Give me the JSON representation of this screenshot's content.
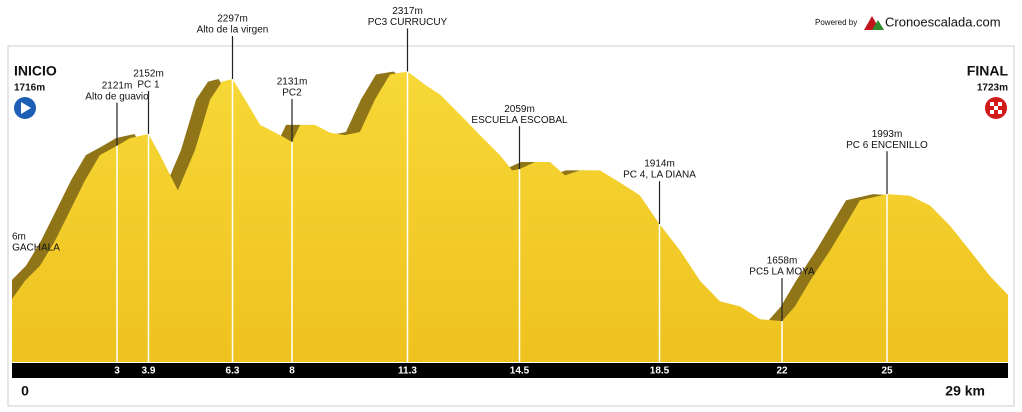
{
  "chart_data": {
    "type": "elevation-profile",
    "brand": {
      "prefix": "Powered by",
      "name": "Cronoescalada.com"
    },
    "start": {
      "label": "INICIO",
      "elevation_label": "1716m"
    },
    "finish": {
      "label": "FINAL",
      "elevation_label": "1723m"
    },
    "distance_label": "29 km",
    "xlim": [
      0,
      28.5
    ],
    "ylim": [
      1550,
      2400
    ],
    "xticks": [
      0
    ],
    "fill_color": "#f2cd2c",
    "shade_color": "#8f7518",
    "x": [
      0,
      0.37,
      0.8,
      1.23,
      1.66,
      2.09,
      2.51,
      3,
      3.37,
      3.9,
      4.23,
      4.74,
      5.23,
      5.66,
      6.0,
      6.3,
      6.66,
      7.09,
      7.66,
      8,
      8.23,
      8.66,
      9.09,
      9.51,
      9.94,
      10.37,
      10.8,
      11.3,
      11.8,
      12.23,
      12.8,
      13.37,
      13.94,
      14.29,
      14.5,
      14.94,
      15.37,
      15.8,
      16.23,
      16.8,
      17.37,
      17.94,
      18.5,
      19.09,
      19.66,
      20.23,
      20.8,
      21.37,
      22,
      22.37,
      22.8,
      23.37,
      23.8,
      24.23,
      25,
      25.66,
      26.23,
      26.8,
      27.37,
      27.94,
      28.5
    ],
    "values": [
      1716,
      1764,
      1804,
      1870,
      1950,
      2030,
      2096,
      2121,
      2141,
      2152,
      2096,
      2003,
      2110,
      2243,
      2290,
      2297,
      2243,
      2176,
      2149,
      2131,
      2176,
      2176,
      2155,
      2149,
      2157,
      2243,
      2309,
      2317,
      2282,
      2256,
      2203,
      2149,
      2096,
      2056,
      2059,
      2078,
      2078,
      2043,
      2056,
      2056,
      2024,
      1990,
      1914,
      1844,
      1764,
      1710,
      1697,
      1663,
      1658,
      1697,
      1764,
      1844,
      1910,
      1977,
      1993,
      1989,
      1963,
      1910,
      1844,
      1777,
      1723
    ],
    "side_annotation": {
      "elevation_label": "6m",
      "name": "GACHALA"
    },
    "waypoints": [
      {
        "km": 3,
        "elevation": 2121,
        "elevation_label": "2121m",
        "name": "Alto de guavio"
      },
      {
        "km": 3.9,
        "elevation": 2152,
        "elevation_label": "2152m",
        "name": "PC 1"
      },
      {
        "km": 6.3,
        "elevation": 2297,
        "elevation_label": "2297m",
        "name": "Alto  de la virgen"
      },
      {
        "km": 8,
        "elevation": 2131,
        "elevation_label": "2131m",
        "name": "PC2"
      },
      {
        "km": 11.3,
        "elevation": 2317,
        "elevation_label": "2317m",
        "name": "PC3 CURRUCUY"
      },
      {
        "km": 14.5,
        "elevation": 2059,
        "elevation_label": "2059m",
        "name": "ESCUELA ESCOBAL"
      },
      {
        "km": 18.5,
        "elevation": 1914,
        "elevation_label": "1914m",
        "name": "PC 4, LA DIANA"
      },
      {
        "km": 22,
        "elevation": 1658,
        "elevation_label": "1658m",
        "name": "PC5 LA MOYA"
      },
      {
        "km": 25,
        "elevation": 1993,
        "elevation_label": "1993m",
        "name": "PC 6 ENCENILLO"
      }
    ]
  }
}
